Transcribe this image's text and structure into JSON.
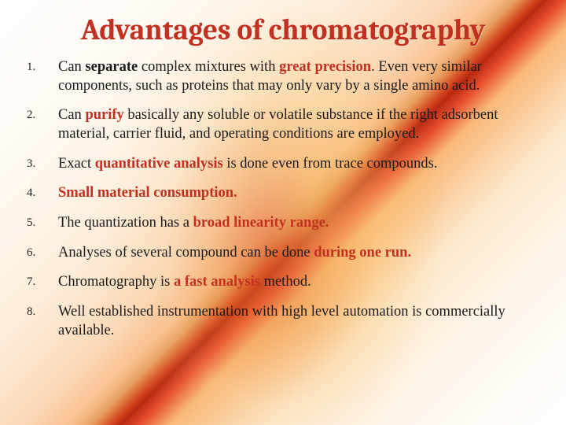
{
  "title": "Advantages of chromatography",
  "title_color": "#c23020",
  "title_fontsize": 37,
  "body_fontsize": 18.5,
  "accent_color": "#c23020",
  "text_color": "#1a1a1a",
  "background_gradient_colors": [
    "#fefefe",
    "#fef8f0",
    "#fdecd8",
    "#fcd9b8",
    "#f9c090",
    "#e8a060",
    "#d44820",
    "#b82810",
    "#e85030",
    "#f9b878",
    "#fde8cc",
    "#fef6ec",
    "#fefefe"
  ],
  "items": [
    {
      "pre1": "Can ",
      "b1": "separate",
      "mid1": " complex mixtures with ",
      "acc1": "great precision",
      "post1": ". Even very similar components, such as proteins that may only vary by a single amino acid."
    },
    {
      "pre1": "Can ",
      "acc1": "purify",
      "post1": " basically any soluble or volatile substance if the right adsorbent material, carrier fluid, and operating conditions are employed."
    },
    {
      "pre1": "Exact ",
      "acc1": "quantitative analysis",
      "post1": " is done even from trace compounds."
    },
    {
      "acc1": "Small material consumption."
    },
    {
      "pre1": "The quantization has a ",
      "acc1": "broad linearity range."
    },
    {
      "pre1": "Analyses of several compound can be done ",
      "acc1": "during  one run."
    },
    {
      "pre1": "Chromatography is ",
      "acc1": "a fast analysis",
      "post1": " method."
    },
    {
      "pre1": "Well established instrumentation with high level automation is commercially available."
    }
  ]
}
